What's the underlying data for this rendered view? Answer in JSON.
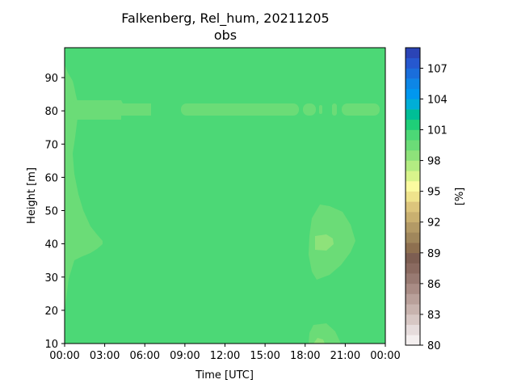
{
  "chart_data": {
    "type": "heatmap",
    "title": "Falkenberg, Rel_hum, 20211205",
    "subtitle": "obs",
    "xlabel": "Time [UTC]",
    "ylabel": "Height [m]",
    "xlim_hours": [
      0,
      24
    ],
    "ylim": [
      10,
      99
    ],
    "x_ticks": [
      "00:00",
      "03:00",
      "06:00",
      "09:00",
      "12:00",
      "15:00",
      "18:00",
      "21:00",
      "00:00"
    ],
    "y_ticks": [
      10,
      20,
      30,
      40,
      50,
      60,
      70,
      80,
      90
    ],
    "colorbar": {
      "label": "[%]",
      "range": [
        80,
        109
      ],
      "ticks": [
        80,
        83,
        86,
        89,
        92,
        95,
        98,
        101,
        104,
        107
      ],
      "levels": [
        {
          "from": 80,
          "color": "#f4efef"
        },
        {
          "from": 81,
          "color": "#e6dcdc"
        },
        {
          "from": 82,
          "color": "#d7c7c4"
        },
        {
          "from": 83,
          "color": "#c8b3ae"
        },
        {
          "from": 84,
          "color": "#b9a09a"
        },
        {
          "from": 85,
          "color": "#a98c85"
        },
        {
          "from": 86,
          "color": "#987a72"
        },
        {
          "from": 87,
          "color": "#8a6a60"
        },
        {
          "from": 88,
          "color": "#7d5e52"
        },
        {
          "from": 89,
          "color": "#8e7050"
        },
        {
          "from": 90,
          "color": "#a0875c"
        },
        {
          "from": 91,
          "color": "#b39a66"
        },
        {
          "from": 92,
          "color": "#c9b070"
        },
        {
          "from": 93,
          "color": "#dcc57c"
        },
        {
          "from": 94,
          "color": "#efe38c"
        },
        {
          "from": 95,
          "color": "#fbfba0"
        },
        {
          "from": 96,
          "color": "#d8f48c"
        },
        {
          "from": 97,
          "color": "#b3ec82"
        },
        {
          "from": 98,
          "color": "#8ee27a"
        },
        {
          "from": 99,
          "color": "#6bdc77"
        },
        {
          "from": 100,
          "color": "#4cd876"
        },
        {
          "from": 101,
          "color": "#1fcf78"
        },
        {
          "from": 102,
          "color": "#00be96"
        },
        {
          "from": 103,
          "color": "#00aed6"
        },
        {
          "from": 104,
          "color": "#0097ef"
        },
        {
          "from": 105,
          "color": "#0d86e6"
        },
        {
          "from": 106,
          "color": "#1a6edb"
        },
        {
          "from": 107,
          "color": "#2658cf"
        },
        {
          "from": 108,
          "color": "#2b44b6"
        }
      ]
    },
    "field": {
      "background_value": 99.5,
      "patches": [
        {
          "value": 98.5,
          "description": "near-surface band along left edge, 00:00-04:00, heights 20-95 m"
        },
        {
          "value": 98.5,
          "description": "layer at ~80 m, 01:00-24:00, intermittent"
        },
        {
          "value": 98.5,
          "description": "patch centred 19:30, heights 29-51 m"
        },
        {
          "value": 97.5,
          "description": "core centred 19:15, ~40 m"
        },
        {
          "value": 98.5,
          "description": "patch near surface, 18:15-20:30, heights 10-16 m"
        }
      ]
    }
  }
}
